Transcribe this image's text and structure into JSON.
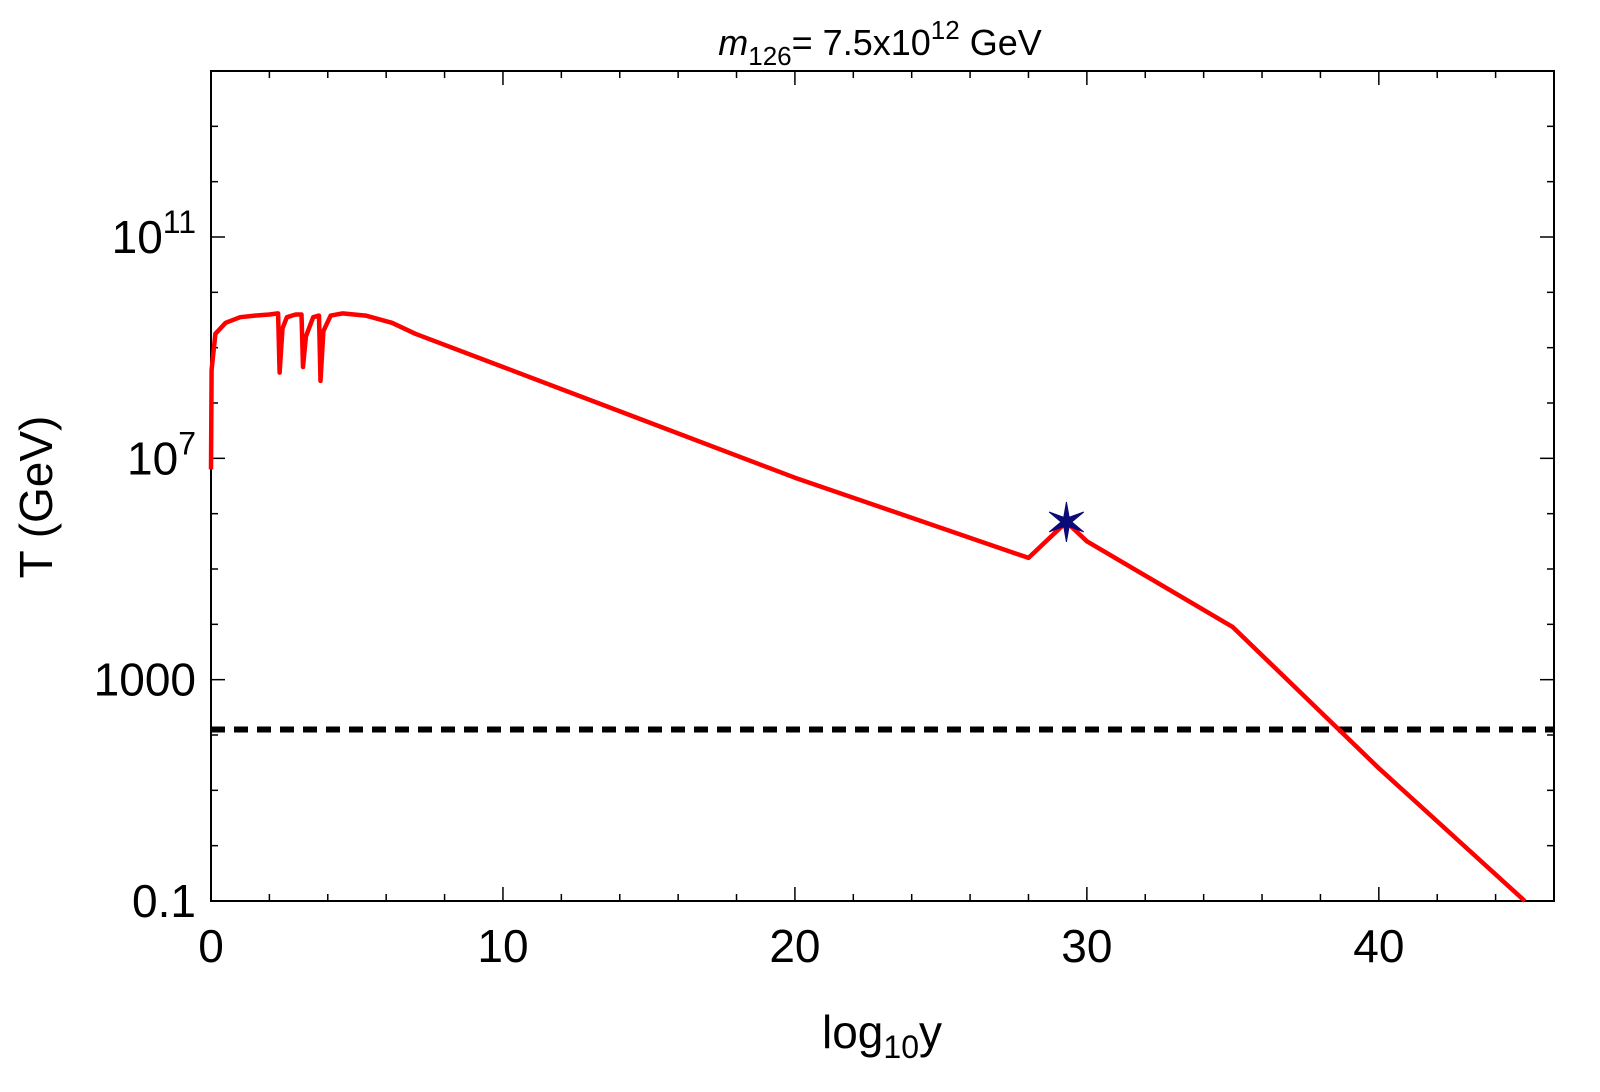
{
  "chart_data": {
    "type": "line",
    "title": {
      "symbol": "m",
      "subscript": "126",
      "prefix": "= 7.5x10",
      "superscript": "12",
      "suffix": " GeV"
    },
    "xlabel": {
      "base": "log",
      "subscript": "10",
      "variable": "y"
    },
    "ylabel": "T (GeV)",
    "xlim": [
      0,
      46
    ],
    "ylim_log10": [
      -1,
      14
    ],
    "x_ticks": [
      {
        "value": 0,
        "label": "0"
      },
      {
        "value": 10,
        "label": "10"
      },
      {
        "value": 20,
        "label": "20"
      },
      {
        "value": 30,
        "label": "30"
      },
      {
        "value": 40,
        "label": "40"
      }
    ],
    "y_ticks": [
      {
        "exp": -1,
        "label": "0.1"
      },
      {
        "exp": 3,
        "label": "1000"
      },
      {
        "exp": 7,
        "base": "10",
        "sup": "7"
      },
      {
        "exp": 11,
        "base": "10",
        "sup": "11"
      }
    ],
    "y_minor_exp": [
      1,
      5,
      9,
      13
    ],
    "series": [
      {
        "name": "T",
        "color": "#ff0000",
        "points_log10": [
          [
            0.0,
            6.8
          ],
          [
            0.02,
            8.6
          ],
          [
            0.15,
            9.25
          ],
          [
            0.5,
            9.45
          ],
          [
            1.0,
            9.55
          ],
          [
            1.5,
            9.58
          ],
          [
            2.0,
            9.6
          ],
          [
            2.3,
            9.62
          ],
          [
            2.35,
            8.55
          ],
          [
            2.45,
            9.35
          ],
          [
            2.6,
            9.55
          ],
          [
            2.9,
            9.6
          ],
          [
            3.1,
            9.6
          ],
          [
            3.15,
            8.65
          ],
          [
            3.25,
            9.2
          ],
          [
            3.5,
            9.55
          ],
          [
            3.7,
            9.58
          ],
          [
            3.75,
            8.4
          ],
          [
            3.85,
            9.3
          ],
          [
            4.1,
            9.58
          ],
          [
            4.5,
            9.62
          ],
          [
            5.3,
            9.58
          ],
          [
            6.2,
            9.45
          ],
          [
            7.0,
            9.25
          ],
          [
            10.0,
            8.65
          ],
          [
            20.0,
            6.65
          ],
          [
            28.0,
            5.2
          ],
          [
            29.3,
            5.85
          ],
          [
            30.0,
            5.5
          ],
          [
            35.0,
            3.95
          ],
          [
            40.0,
            1.4
          ],
          [
            45.0,
            -1.0
          ]
        ]
      }
    ],
    "marker": {
      "x": 29.3,
      "y_log10": 5.85,
      "symbol": "star",
      "color": "#0a0a78"
    },
    "reference_line": {
      "y_log10": 2.1,
      "style": "dashed",
      "color": "#000000"
    },
    "grid": false
  }
}
